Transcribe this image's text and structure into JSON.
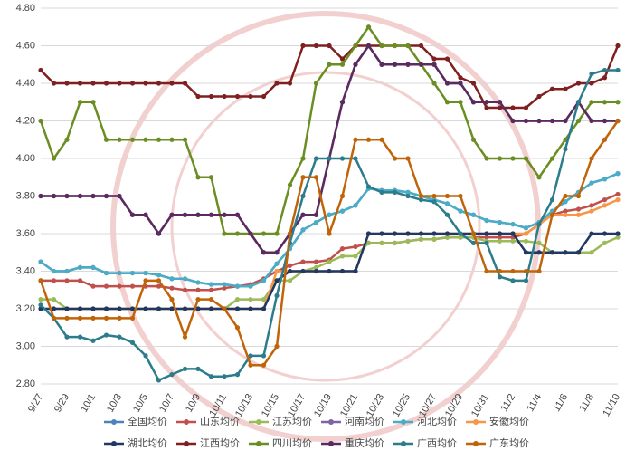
{
  "chart_data": {
    "type": "line",
    "categories": [
      "9/27",
      null,
      "9/29",
      null,
      "10/1",
      null,
      "10/3",
      null,
      "10/5",
      null,
      "10/7",
      null,
      "10/9",
      null,
      "10/11",
      null,
      "10/13",
      null,
      "10/15",
      null,
      "10/17",
      null,
      "10/19",
      null,
      "10/21",
      null,
      "10/23",
      null,
      "10/25",
      null,
      "10/27",
      null,
      "10/29",
      null,
      "10/31",
      null,
      "11/2",
      null,
      "11/4",
      null,
      "11/6",
      null,
      "11/8",
      null,
      "11/10"
    ],
    "ylim": [
      2.8,
      4.8
    ],
    "yticks": [
      {
        "value": 2.8,
        "label": "2.80"
      },
      {
        "value": 3.0,
        "label": "3.00"
      },
      {
        "value": 3.2,
        "label": "3.20"
      },
      {
        "value": 3.4,
        "label": "3.40"
      },
      {
        "value": 3.6,
        "label": "3.60"
      },
      {
        "value": 3.8,
        "label": "3.80"
      },
      {
        "value": 4.0,
        "label": "4.00"
      },
      {
        "value": 4.2,
        "label": "4.20"
      },
      {
        "value": 4.4,
        "label": "4.40"
      },
      {
        "value": 4.6,
        "label": "4.60"
      },
      {
        "value": 4.8,
        "label": "4.80"
      }
    ],
    "grid": true,
    "legend": "bottom",
    "series": [
      {
        "name": "全国均价",
        "color": "#4f81bd",
        "values": [
          3.45,
          3.4,
          3.4,
          3.42,
          3.42,
          3.39,
          3.39,
          3.39,
          3.39,
          3.38,
          3.36,
          3.36,
          3.34,
          3.33,
          3.33,
          3.32,
          3.32,
          3.35,
          3.44,
          3.52,
          3.62,
          3.66,
          3.7,
          3.72,
          3.75,
          3.84,
          3.83,
          3.83,
          3.82,
          3.8,
          3.78,
          3.76,
          3.72,
          3.7,
          3.67,
          3.66,
          3.65,
          3.63,
          3.66,
          3.72,
          3.77,
          3.82,
          3.87,
          3.89,
          3.92
        ]
      },
      {
        "name": "山东均价",
        "color": "#c0504d",
        "values": [
          3.35,
          3.35,
          3.35,
          3.35,
          3.32,
          3.32,
          3.32,
          3.32,
          3.32,
          3.32,
          3.31,
          3.3,
          3.3,
          3.3,
          3.31,
          3.32,
          3.33,
          3.36,
          3.4,
          3.43,
          3.45,
          3.45,
          3.46,
          3.52,
          3.53,
          3.55,
          3.55,
          3.55,
          3.56,
          3.57,
          3.57,
          3.58,
          3.58,
          3.58,
          3.58,
          3.58,
          3.58,
          3.6,
          3.65,
          3.7,
          3.72,
          3.73,
          3.75,
          3.78,
          3.81
        ]
      },
      {
        "name": "江苏均价",
        "color": "#9bbb59",
        "values": [
          3.25,
          3.25,
          3.2,
          3.2,
          3.2,
          3.2,
          3.2,
          3.2,
          3.2,
          3.2,
          3.2,
          3.2,
          3.2,
          3.2,
          3.2,
          3.25,
          3.25,
          3.25,
          3.35,
          3.35,
          3.4,
          3.42,
          3.45,
          3.48,
          3.48,
          3.55,
          3.55,
          3.55,
          3.56,
          3.57,
          3.57,
          3.58,
          3.58,
          3.58,
          3.56,
          3.56,
          3.56,
          3.56,
          3.55,
          3.5,
          3.5,
          3.5,
          3.5,
          3.55,
          3.58
        ]
      },
      {
        "name": "河南均价",
        "color": "#8064a2",
        "values": [
          3.8,
          3.8,
          3.8,
          3.8,
          3.8,
          3.8,
          3.8,
          3.7,
          3.7,
          3.6,
          3.7,
          3.7,
          3.7,
          3.7,
          3.7,
          3.7,
          3.6,
          3.5,
          3.5,
          3.6,
          3.7,
          3.7,
          4.0,
          4.3,
          4.5,
          4.6,
          4.5,
          4.5,
          4.5,
          4.5,
          4.5,
          4.4,
          4.4,
          4.3,
          4.3,
          4.3,
          4.2,
          4.2,
          4.2,
          4.2,
          4.2,
          4.3,
          4.2,
          4.2,
          4.2
        ]
      },
      {
        "name": "河北均价",
        "color": "#4bacc6",
        "values": [
          3.45,
          3.4,
          3.4,
          3.42,
          3.42,
          3.39,
          3.39,
          3.39,
          3.39,
          3.38,
          3.36,
          3.36,
          3.34,
          3.33,
          3.33,
          3.32,
          3.32,
          3.35,
          3.44,
          3.52,
          3.62,
          3.66,
          3.7,
          3.72,
          3.75,
          3.84,
          3.83,
          3.83,
          3.82,
          3.8,
          3.78,
          3.76,
          3.72,
          3.7,
          3.67,
          3.66,
          3.65,
          3.63,
          3.66,
          3.72,
          3.77,
          3.82,
          3.87,
          3.89,
          3.92
        ]
      },
      {
        "name": "安徽均价",
        "color": "#f79646",
        "values": [
          3.2,
          3.2,
          3.2,
          3.2,
          3.2,
          3.2,
          3.2,
          3.2,
          3.2,
          3.2,
          3.2,
          3.2,
          3.2,
          3.2,
          3.2,
          3.2,
          3.2,
          3.2,
          3.4,
          3.4,
          3.4,
          3.4,
          3.4,
          3.4,
          3.4,
          3.6,
          3.6,
          3.6,
          3.6,
          3.6,
          3.6,
          3.6,
          3.6,
          3.6,
          3.6,
          3.6,
          3.6,
          3.6,
          3.65,
          3.7,
          3.7,
          3.7,
          3.72,
          3.75,
          3.78
        ]
      },
      {
        "name": "湖北均价",
        "color": "#1f3864",
        "values": [
          3.2,
          3.2,
          3.2,
          3.2,
          3.2,
          3.2,
          3.2,
          3.2,
          3.2,
          3.2,
          3.2,
          3.2,
          3.2,
          3.2,
          3.2,
          3.2,
          3.2,
          3.2,
          3.35,
          3.4,
          3.4,
          3.4,
          3.4,
          3.4,
          3.4,
          3.6,
          3.6,
          3.6,
          3.6,
          3.6,
          3.6,
          3.6,
          3.6,
          3.6,
          3.6,
          3.6,
          3.6,
          3.5,
          3.5,
          3.5,
          3.5,
          3.5,
          3.6,
          3.6,
          3.6
        ]
      },
      {
        "name": "江西均价",
        "color": "#7f1f1f",
        "values": [
          4.47,
          4.4,
          4.4,
          4.4,
          4.4,
          4.4,
          4.4,
          4.4,
          4.4,
          4.4,
          4.4,
          4.4,
          4.33,
          4.33,
          4.33,
          4.33,
          4.33,
          4.33,
          4.4,
          4.4,
          4.6,
          4.6,
          4.6,
          4.53,
          4.6,
          4.6,
          4.6,
          4.6,
          4.6,
          4.6,
          4.53,
          4.53,
          4.43,
          4.4,
          4.27,
          4.27,
          4.27,
          4.27,
          4.33,
          4.37,
          4.37,
          4.4,
          4.4,
          4.43,
          4.6
        ]
      },
      {
        "name": "四川均价",
        "color": "#6b8e23",
        "values": [
          4.2,
          4.0,
          4.1,
          4.3,
          4.3,
          4.1,
          4.1,
          4.1,
          4.1,
          4.1,
          4.1,
          4.1,
          3.9,
          3.9,
          3.6,
          3.6,
          3.6,
          3.6,
          3.6,
          3.86,
          4.0,
          4.4,
          4.5,
          4.5,
          4.6,
          4.7,
          4.6,
          4.6,
          4.6,
          4.5,
          4.4,
          4.3,
          4.3,
          4.1,
          4.0,
          4.0,
          4.0,
          4.0,
          3.9,
          4.0,
          4.1,
          4.2,
          4.3,
          4.3,
          4.3
        ]
      },
      {
        "name": "重庆均价",
        "color": "#5b2a5e",
        "values": [
          3.8,
          3.8,
          3.8,
          3.8,
          3.8,
          3.8,
          3.8,
          3.7,
          3.7,
          3.6,
          3.7,
          3.7,
          3.7,
          3.7,
          3.7,
          3.7,
          3.6,
          3.5,
          3.5,
          3.6,
          3.7,
          3.7,
          4.0,
          4.3,
          4.5,
          4.6,
          4.5,
          4.5,
          4.5,
          4.5,
          4.5,
          4.4,
          4.4,
          4.3,
          4.3,
          4.3,
          4.2,
          4.2,
          4.2,
          4.2,
          4.2,
          4.3,
          4.2,
          4.2,
          4.2
        ]
      },
      {
        "name": "广西均价",
        "color": "#2c7c8c",
        "values": [
          3.22,
          3.15,
          3.05,
          3.05,
          3.03,
          3.06,
          3.05,
          3.02,
          2.95,
          2.82,
          2.85,
          2.88,
          2.88,
          2.84,
          2.84,
          2.85,
          2.95,
          2.95,
          3.27,
          3.55,
          3.8,
          4.0,
          4.0,
          4.0,
          4.0,
          3.85,
          3.82,
          3.82,
          3.8,
          3.78,
          3.77,
          3.7,
          3.6,
          3.55,
          3.55,
          3.37,
          3.35,
          3.35,
          3.65,
          3.78,
          4.05,
          4.3,
          4.45,
          4.47,
          4.47
        ]
      },
      {
        "name": "广东均价",
        "color": "#c0640a",
        "values": [
          3.35,
          3.15,
          3.15,
          3.15,
          3.15,
          3.15,
          3.15,
          3.15,
          3.35,
          3.35,
          3.25,
          3.05,
          3.25,
          3.25,
          3.2,
          3.1,
          2.9,
          2.9,
          3.0,
          3.6,
          3.9,
          3.9,
          3.6,
          3.8,
          4.1,
          4.1,
          4.1,
          4.0,
          4.0,
          3.8,
          3.8,
          3.8,
          3.8,
          3.6,
          3.4,
          3.4,
          3.4,
          3.4,
          3.4,
          3.7,
          3.8,
          3.8,
          4.0,
          4.1,
          4.2
        ]
      }
    ]
  }
}
